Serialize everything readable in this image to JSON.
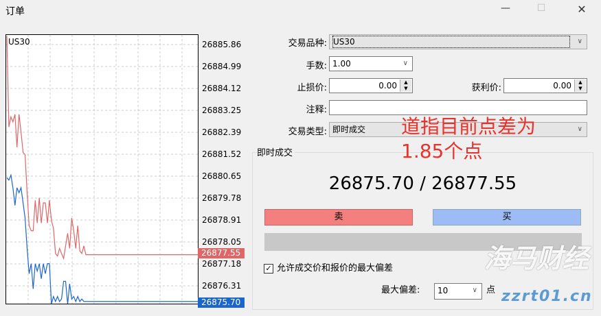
{
  "window": {
    "title": "订单",
    "minimize": "—",
    "maximize": "☐",
    "close": "✕"
  },
  "chart": {
    "symbol": "US30",
    "price_ticks": [
      "26885.86",
      "26884.99",
      "26884.12",
      "26883.25",
      "26882.39",
      "26881.52",
      "26880.65",
      "26879.78",
      "26878.91",
      "26878.05",
      "26877.18",
      "26876.31"
    ],
    "ask_label": "26877.55",
    "bid_label": "26875.70",
    "ask_color": "#e06666",
    "bid_color": "#1a66cc"
  },
  "chart_data": {
    "type": "line",
    "ylim": [
      26875.4,
      26886.2
    ],
    "grid": true,
    "series": [
      {
        "values": [
          26886.2,
          26882.6,
          26883.0,
          26882.8,
          26883.1,
          26881.8,
          26883.1,
          26882.4,
          26881.6,
          26881.5,
          26880.0,
          26878.7,
          26878.5,
          26878.5,
          26879.7,
          26878.8,
          26879.8,
          26878.8,
          26879.6,
          26879.6,
          26878.8,
          26879.7,
          26878.9,
          26878.6,
          26877.6,
          26877.5,
          26877.8,
          26877.6,
          26877.4,
          26877.9,
          26878.4,
          26877.8,
          26879.0,
          26878.5,
          26877.8,
          26878.7,
          26877.7,
          26877.6,
          26877.9,
          26877.55
        ]
      },
      {
        "values": [
          26880.6,
          26880.5,
          26880.7,
          26880.2,
          26879.5,
          26880.2,
          26880.0,
          26880.2,
          26879.6,
          26879.0,
          26877.8,
          26876.8,
          26877.2,
          26876.2,
          26877.2,
          26876.9,
          26877.2,
          26876.6,
          26877.2,
          26876.8,
          26877.2,
          26877.2,
          26875.6,
          26875.9,
          26875.7,
          26875.9,
          26875.7,
          26875.8,
          26876.5,
          26876.5,
          26875.6,
          26876.4,
          26875.8,
          26875.9,
          26875.7,
          26875.9,
          26875.7,
          26875.8,
          26875.7,
          26875.7
        ]
      }
    ]
  },
  "form": {
    "symbol_label": "交易品种:",
    "symbol_value": "US30",
    "volume_label": "手数:",
    "volume_value": "1.00",
    "sl_label": "止损价:",
    "sl_value": "0.00",
    "tp_label": "获利价:",
    "tp_value": "0.00",
    "comment_label": "注释:",
    "comment_value": "",
    "type_label": "交易类型:",
    "type_value": "即时成交"
  },
  "execution": {
    "group_label": "即时成交",
    "quote": "26875.70 / 26877.55",
    "sell": "卖",
    "buy": "买",
    "deviation_checkbox": "允许成交价和报价的最大偏差",
    "deviation_checked": true,
    "deviation_label": "最大偏差:",
    "deviation_value": "10",
    "deviation_unit": "点"
  },
  "annotation": {
    "line1": "道指目前点差为",
    "line2": "1.85个点"
  },
  "watermark": {
    "text": "海马财经",
    "url": "zzrt01.cn"
  }
}
